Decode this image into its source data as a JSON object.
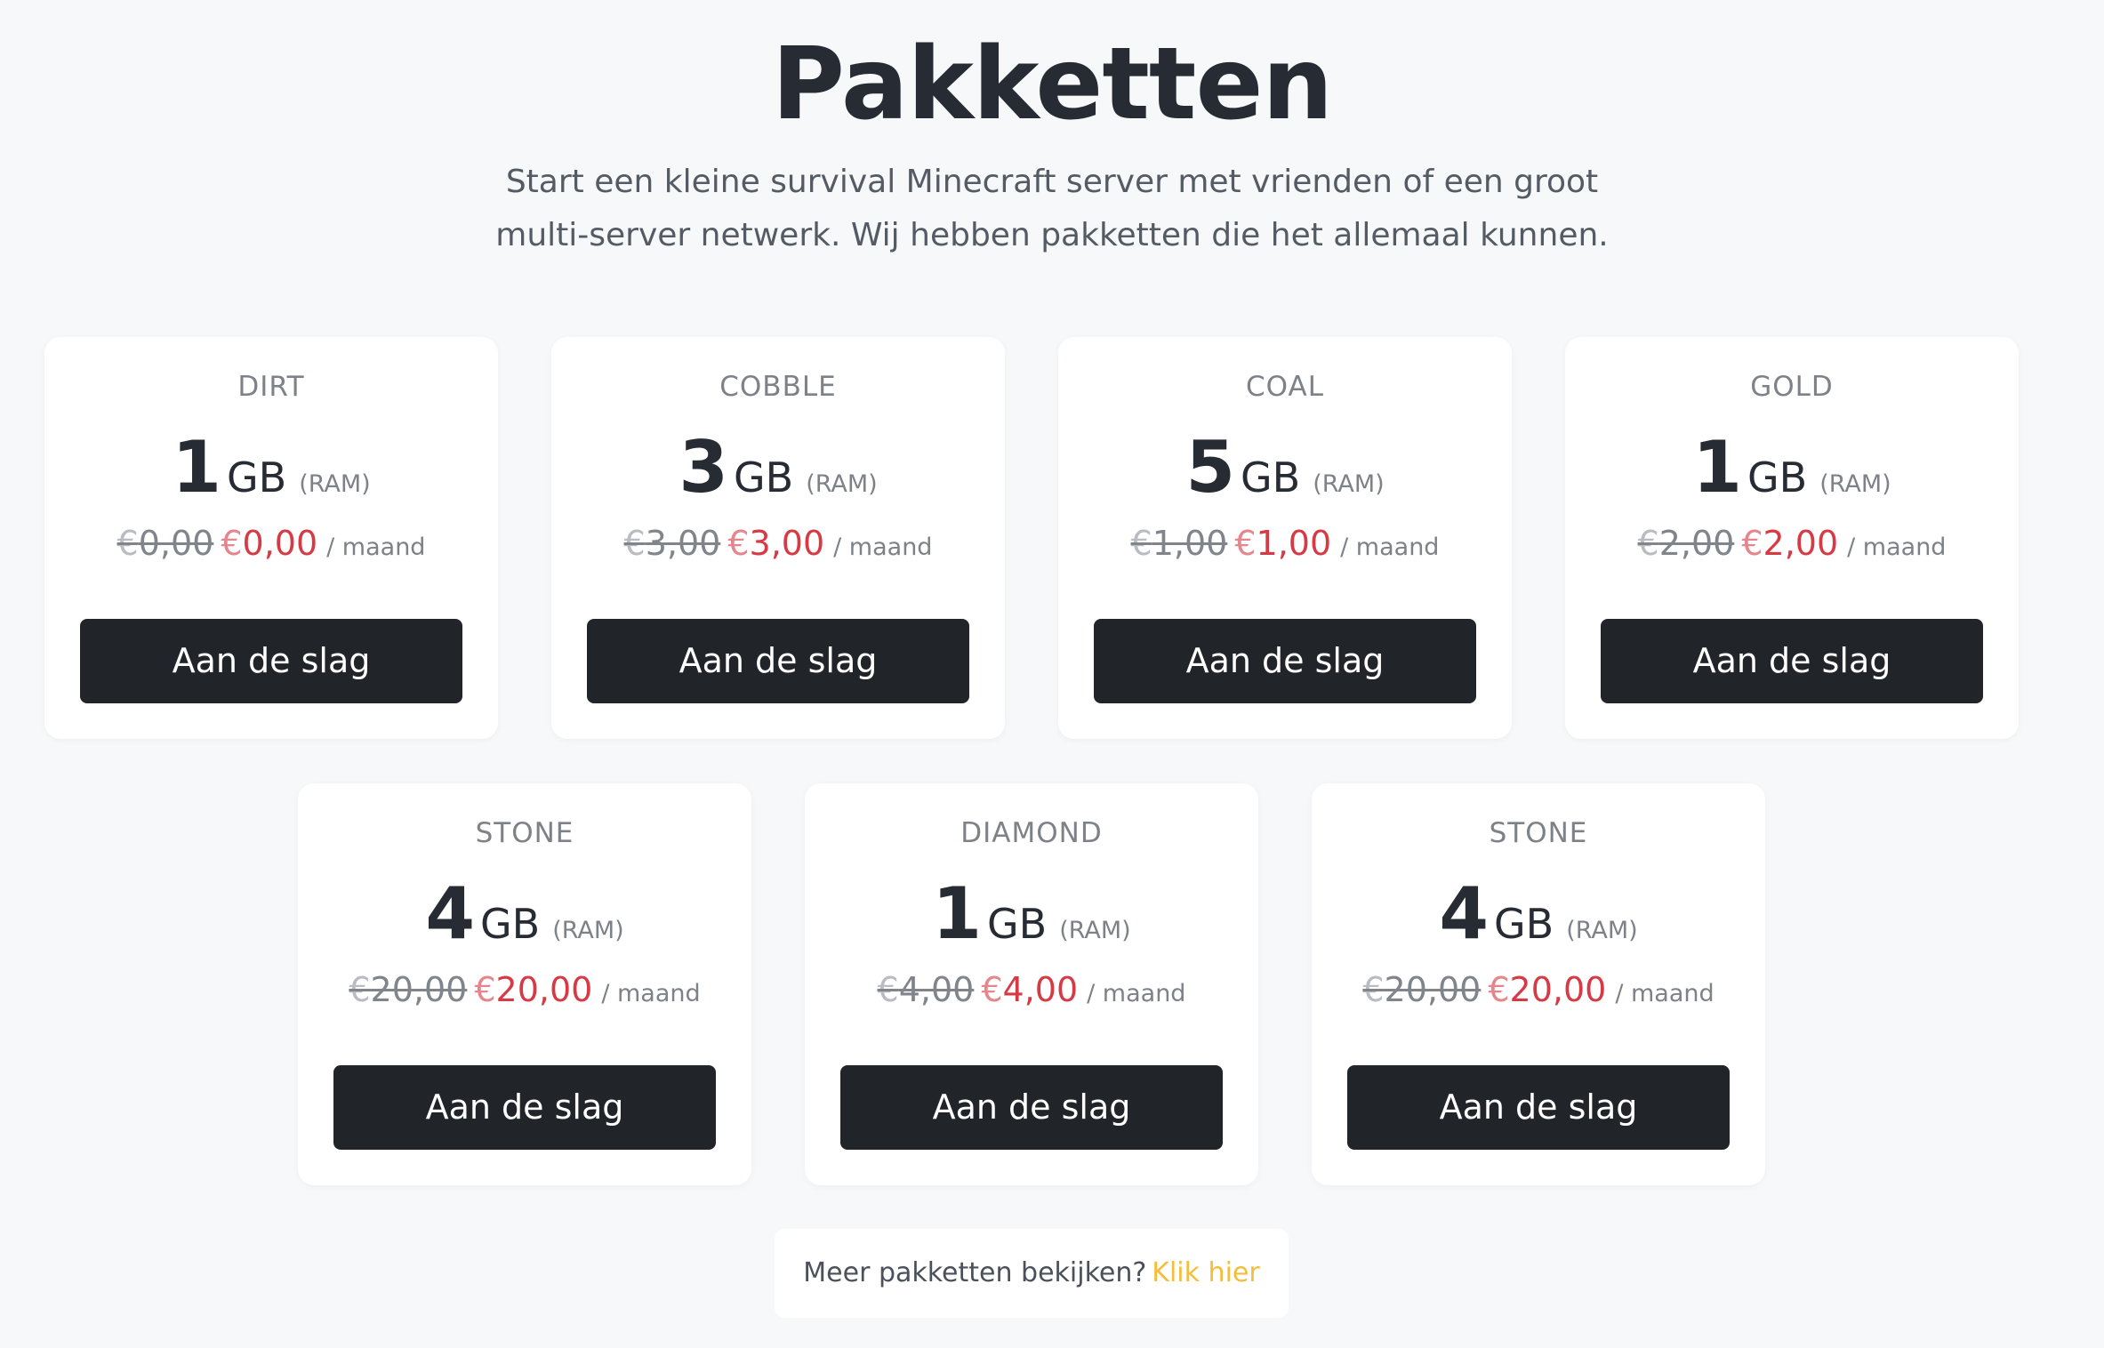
{
  "header": {
    "title": "Pakketten",
    "subtitle_lines": [
      "Start een kleine survival Minecraft server met vrienden of een groot",
      "multi-server netwerk. Wij hebben pakketten die het allemaal kunnen."
    ]
  },
  "colors": {
    "accent_price": "#d63a45",
    "button": "#212428",
    "link": "#f4be3a"
  },
  "packages": [
    {
      "name": "DIRT",
      "ram": "1",
      "unit": "GB",
      "ram_label": "(RAM)",
      "old_cur": "€",
      "old_price": "0,00",
      "new_cur": "€",
      "new_price": "0,00",
      "period": "/ maand",
      "button": "Aan de slag"
    },
    {
      "name": "COBBLE",
      "ram": "3",
      "unit": "GB",
      "ram_label": "(RAM)",
      "old_cur": "€",
      "old_price": "3,00",
      "new_cur": "€",
      "new_price": "3,00",
      "period": "/ maand",
      "button": "Aan de slag"
    },
    {
      "name": "COAL",
      "ram": "5",
      "unit": "GB",
      "ram_label": "(RAM)",
      "old_cur": "€",
      "old_price": "1,00",
      "new_cur": "€",
      "new_price": "1,00",
      "period": "/ maand",
      "button": "Aan de slag"
    },
    {
      "name": "GOLD",
      "ram": "1",
      "unit": "GB",
      "ram_label": "(RAM)",
      "old_cur": "€",
      "old_price": "2,00",
      "new_cur": "€",
      "new_price": "2,00",
      "period": "/ maand",
      "button": "Aan de slag"
    },
    {
      "name": "STONE",
      "ram": "4",
      "unit": "GB",
      "ram_label": "(RAM)",
      "old_cur": "€",
      "old_price": "20,00",
      "new_cur": "€",
      "new_price": "20,00",
      "period": "/ maand",
      "button": "Aan de slag"
    },
    {
      "name": "DIAMOND",
      "ram": "1",
      "unit": "GB",
      "ram_label": "(RAM)",
      "old_cur": "€",
      "old_price": "4,00",
      "new_cur": "€",
      "new_price": "4,00",
      "period": "/ maand",
      "button": "Aan de slag"
    },
    {
      "name": "STONE",
      "ram": "4",
      "unit": "GB",
      "ram_label": "(RAM)",
      "old_cur": "€",
      "old_price": "20,00",
      "new_cur": "€",
      "new_price": "20,00",
      "period": "/ maand",
      "button": "Aan de slag"
    }
  ],
  "footer": {
    "text": "Meer pakketten bekijken?",
    "link": "Klik hier"
  }
}
